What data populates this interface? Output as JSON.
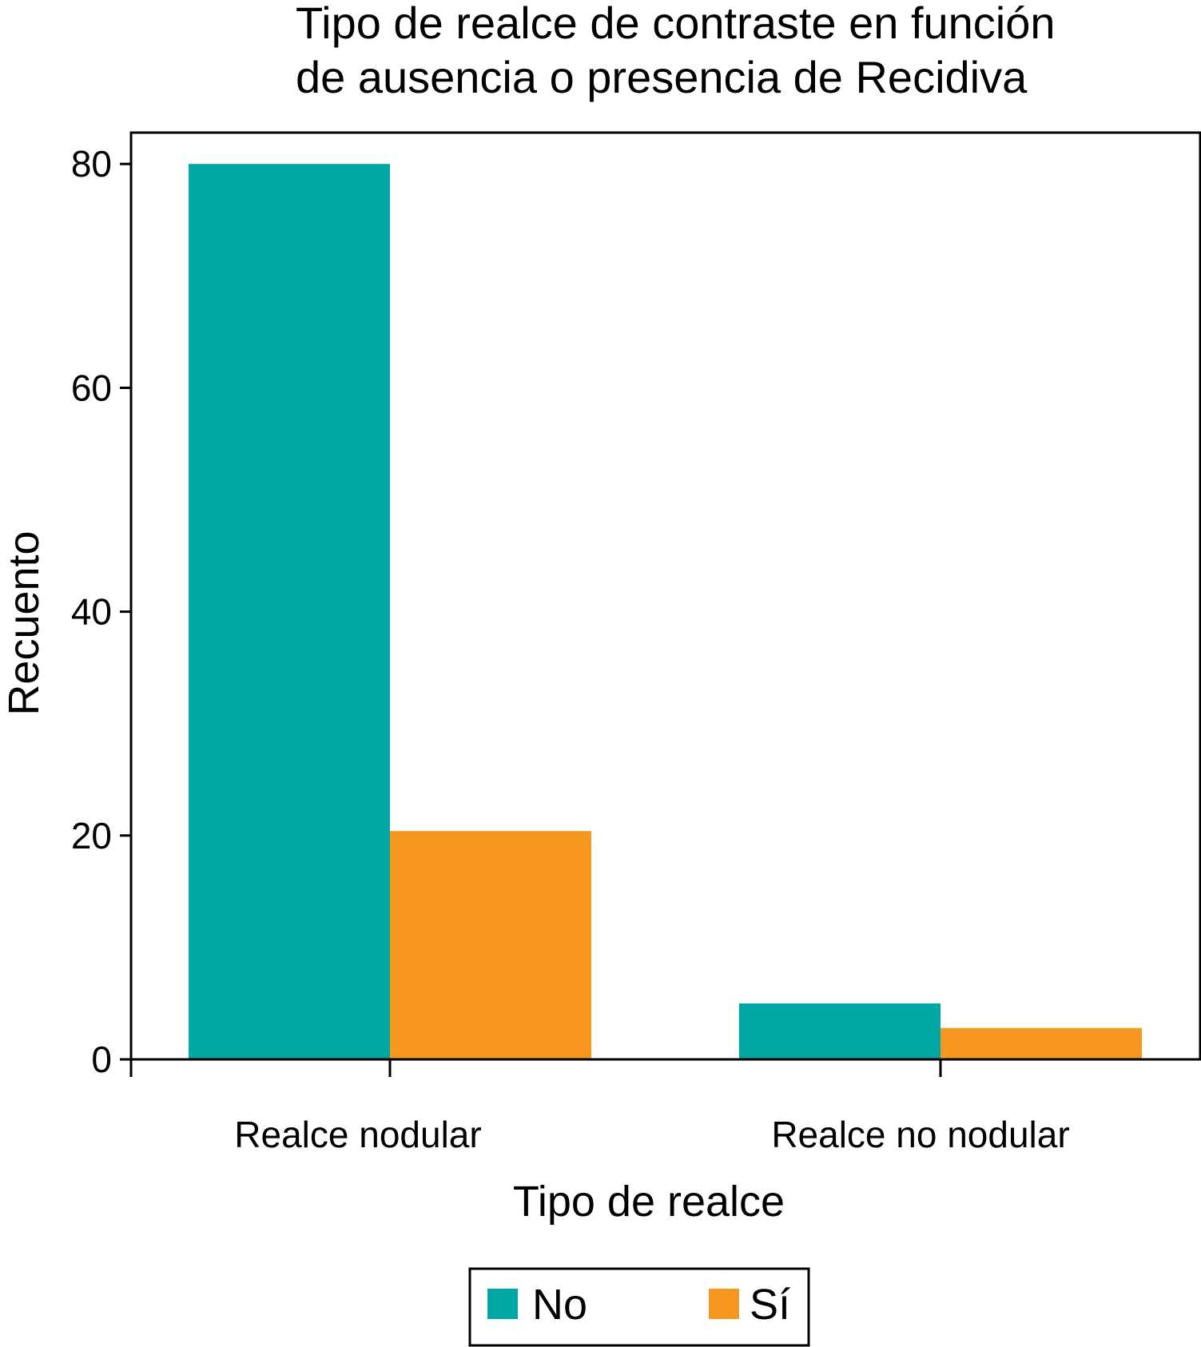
{
  "chart_data": {
    "type": "bar",
    "title": [
      "Tipo de realce de contraste en función",
      "de ausencia o presencia de Recidiva"
    ],
    "xlabel": "Tipo de realce",
    "ylabel": "Recuento",
    "categories": [
      "Realce nodular",
      "Realce no nodular"
    ],
    "series": [
      {
        "name": "No",
        "color": "#00a6a2",
        "values": [
          80,
          5
        ]
      },
      {
        "name": "Sí",
        "color": "#f6981f",
        "values": [
          20.4,
          2.8
        ]
      }
    ],
    "ylim": [
      0,
      82.8
    ],
    "yticks": [
      "0",
      "20",
      "40",
      "60",
      "80"
    ],
    "grid": false,
    "legend_position": "bottom-center"
  }
}
